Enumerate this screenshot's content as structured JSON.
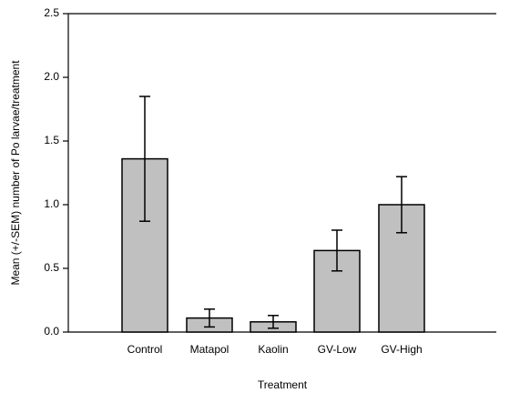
{
  "chart_data": {
    "type": "bar",
    "x_label": "Treatment",
    "y_label": "Mean (+/-SEM) number of Po larvae/treatment",
    "categories": [
      "Control",
      "Matapol",
      "Kaolin",
      "GV-Low",
      "GV-High"
    ],
    "values": [
      1.36,
      0.11,
      0.08,
      0.64,
      1.0
    ],
    "errors": [
      0.49,
      0.07,
      0.05,
      0.16,
      0.22
    ],
    "color": "#c0c0c0",
    "ylim": [
      0,
      2.5
    ],
    "yticks": [
      {
        "value": 0,
        "label": "0.0"
      },
      0.5,
      {
        "value": 1,
        "label": "1.0"
      },
      1.5,
      {
        "value": 2,
        "label": "2.0"
      },
      2.5
    ],
    "grid": false
  }
}
